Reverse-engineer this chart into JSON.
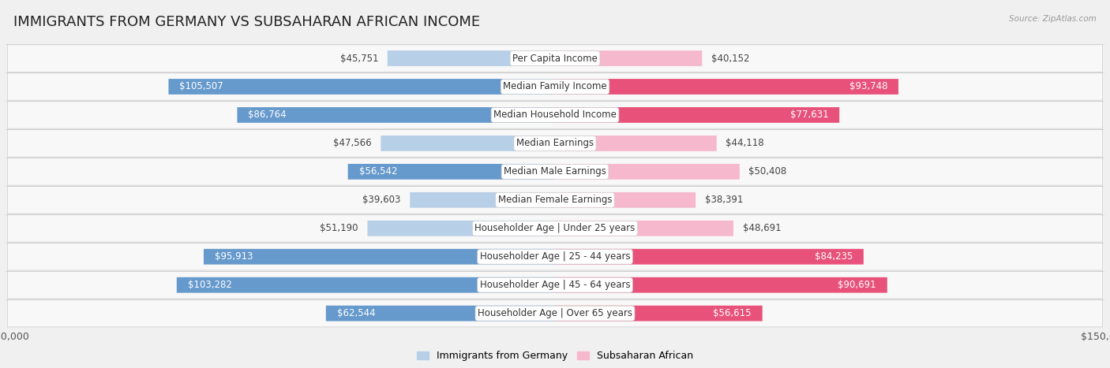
{
  "title": "IMMIGRANTS FROM GERMANY VS SUBSAHARAN AFRICAN INCOME",
  "source": "Source: ZipAtlas.com",
  "categories": [
    "Per Capita Income",
    "Median Family Income",
    "Median Household Income",
    "Median Earnings",
    "Median Male Earnings",
    "Median Female Earnings",
    "Householder Age | Under 25 years",
    "Householder Age | 25 - 44 years",
    "Householder Age | 45 - 64 years",
    "Householder Age | Over 65 years"
  ],
  "germany_values": [
    45751,
    105507,
    86764,
    47566,
    56542,
    39603,
    51190,
    95913,
    103282,
    62544
  ],
  "subsaharan_values": [
    40152,
    93748,
    77631,
    44118,
    50408,
    38391,
    48691,
    84235,
    90691,
    56615
  ],
  "germany_labels": [
    "$45,751",
    "$105,507",
    "$86,764",
    "$47,566",
    "$56,542",
    "$39,603",
    "$51,190",
    "$95,913",
    "$103,282",
    "$62,544"
  ],
  "subsaharan_labels": [
    "$40,152",
    "$93,748",
    "$77,631",
    "$44,118",
    "$50,408",
    "$38,391",
    "$48,691",
    "$84,235",
    "$90,691",
    "$56,615"
  ],
  "germany_color_light": "#b8cfe8",
  "germany_color_dark": "#6699cc",
  "subsaharan_color_light": "#f5b8cc",
  "subsaharan_color_dark": "#e8527a",
  "max_value": 150000,
  "background_color": "#f0f0f0",
  "row_bg_light": "#f8f8f8",
  "row_bg_dark": "#e8e8e8",
  "title_fontsize": 13,
  "label_fontsize": 8.5,
  "axis_fontsize": 9,
  "inside_threshold": 55000
}
